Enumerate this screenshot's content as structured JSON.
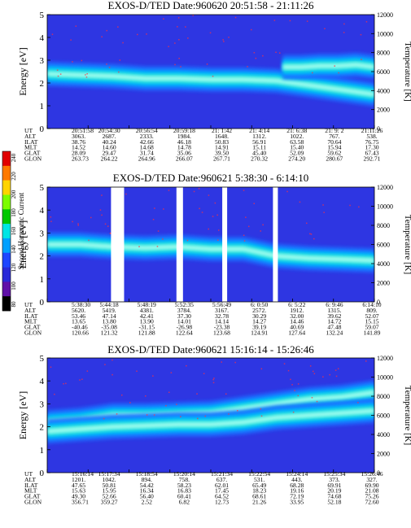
{
  "colorbar": {
    "label": "Second Harmonic Current",
    "ticks": [
      "240",
      "220",
      "200",
      "180",
      "160",
      "140",
      "120",
      "100",
      "80"
    ],
    "colors": [
      "#e10000",
      "#ff7a00",
      "#ffd400",
      "#7cfc00",
      "#00c800",
      "#00e5e5",
      "#00a0ff",
      "#1e46ff",
      "#2a2ad8",
      "#6010a8",
      "#000000"
    ]
  },
  "panels": [
    {
      "title": "EXOS-D/TED  Date:960620  20:51:58 - 21:11:26",
      "ylabel": "Energy [eV]",
      "y2label": "Temperature [K]",
      "yticks": [
        "0",
        "1",
        "2",
        "3",
        "4",
        "5"
      ],
      "y2ticks": [
        "0",
        "2000",
        "4000",
        "6000",
        "8000",
        "10000",
        "12000"
      ],
      "rows": [
        {
          "label": "UT",
          "values": [
            "20:51:58",
            "20:54:30",
            "20:56:54",
            "20:59:18",
            "21: 1:42",
            "21: 4:14",
            "21: 6:38",
            "21: 9: 2",
            "21:11:26"
          ]
        },
        {
          "label": "ALT",
          "values": [
            "3063.",
            "2687.",
            "2333.",
            "1984.",
            "1648.",
            "1312.",
            "1022.",
            "767.",
            "538."
          ]
        },
        {
          "label": "ILAT",
          "values": [
            "38.76",
            "40.24",
            "42.66",
            "46.18",
            "50.83",
            "56.91",
            "63.58",
            "70.64",
            "76.75"
          ]
        },
        {
          "label": "MLT",
          "values": [
            "14.52",
            "14.60",
            "14.68",
            "14.78",
            "14.91",
            "15.11",
            "15.40",
            "15.94",
            "17.30"
          ]
        },
        {
          "label": "GLAT",
          "values": [
            "28.09",
            "29.47",
            "31.74",
            "35.06",
            "39.50",
            "45.40",
            "52.09",
            "59.62",
            "67.43"
          ]
        },
        {
          "label": "GLON",
          "values": [
            "263.73",
            "264.22",
            "264.96",
            "266.07",
            "267.71",
            "270.32",
            "274.20",
            "280.67",
            "292.71"
          ]
        }
      ]
    },
    {
      "title": "EXOS-D/TED   Date:960621   5:38:30 - 6:14:10",
      "ylabel": "Energy [eV]",
      "y2label": "Temperature [K]",
      "yticks": [
        "0",
        "1",
        "2",
        "3",
        "4",
        "5"
      ],
      "y2ticks": [
        "0",
        "2000",
        "4000",
        "6000",
        "8000",
        "10000",
        "12000"
      ],
      "rows": [
        {
          "label": "UT",
          "values": [
            "5:38:30",
            "5:44:18",
            "5:48:19",
            "5:52:35",
            "5:56:49",
            "6: 0:50",
            "6: 5:22",
            "6: 9:46",
            "6:14:10"
          ]
        },
        {
          "label": "ALT",
          "values": [
            "5620.",
            "5419.",
            "4381.",
            "3784.",
            "3167.",
            "2572.",
            "1912.",
            "1315.",
            "809."
          ]
        },
        {
          "label": "ILAT",
          "values": [
            "53.46",
            "47.14",
            "42.41",
            "37.30",
            "32.78",
            "30.29",
            "32.00",
            "39.62",
            "52.07"
          ]
        },
        {
          "label": "MLT",
          "values": [
            "13.65",
            "13.80",
            "13.90",
            "14.01",
            "14.14",
            "14.27",
            "14.46",
            "14.72",
            "15.15"
          ]
        },
        {
          "label": "GLAT",
          "values": [
            "-40.46",
            "-35.08",
            "-31.15",
            "-26.98",
            "-23.38",
            "39.19",
            "40.69",
            "47.48",
            "59.07"
          ]
        },
        {
          "label": "GLON",
          "values": [
            "120.66",
            "121.32",
            "121.88",
            "122.64",
            "123.68",
            "124.91",
            "127.64",
            "132.24",
            "141.89"
          ]
        }
      ]
    },
    {
      "title": "EXOS-D/TED   Date:960621   15:16:14 - 15:26:46",
      "ylabel": "Energy [eV]",
      "y2label": "Temperature [K]",
      "yticks": [
        "0",
        "1",
        "2",
        "3",
        "4",
        "5"
      ],
      "y2ticks": [
        "0",
        "2000",
        "4000",
        "6000",
        "8000",
        "10000",
        "12000"
      ],
      "rows": [
        {
          "label": "UT",
          "values": [
            "15:16:14",
            "15:17:34",
            "15:18:54",
            "15:20:14",
            "15:21:34",
            "15:22:54",
            "15:24:14",
            "15:25:34",
            "15:26:46"
          ]
        },
        {
          "label": "ALT",
          "values": [
            "1201.",
            "1042.",
            "894.",
            "758.",
            "637.",
            "531.",
            "443.",
            "373.",
            "327."
          ]
        },
        {
          "label": "ILAT",
          "values": [
            "47.65",
            "50.81",
            "54.42",
            "58.23",
            "62.01",
            "65.49",
            "68.28",
            "69.91",
            "69.90"
          ]
        },
        {
          "label": "MLT",
          "values": [
            "15.63",
            "15.95",
            "16.34",
            "16.83",
            "17.45",
            "18.23",
            "19.16",
            "20.19",
            "21.08"
          ]
        },
        {
          "label": "GLAT",
          "values": [
            "49.30",
            "52.66",
            "56.40",
            "60.41",
            "64.52",
            "68.61",
            "72.19",
            "74.68",
            "75.26"
          ]
        },
        {
          "label": "GLON",
          "values": [
            "356.71",
            "359.27",
            "2.52",
            "6.82",
            "12.73",
            "21.26",
            "33.95",
            "52.18",
            "72.60"
          ]
        }
      ]
    }
  ],
  "chart_data": [
    {
      "type": "heatmap",
      "title": "EXOS-D/TED  Date:960620  20:51:58 - 21:11:26",
      "ylabel": "Energy [eV]",
      "y2label": "Temperature [K]",
      "ylim": [
        0,
        5
      ],
      "y2lim": [
        0,
        12000
      ],
      "x_ticks": [
        "20:51:58",
        "20:54:30",
        "20:56:54",
        "20:59:18",
        "21: 1:42",
        "21: 4:14",
        "21: 6:38",
        "21: 9: 2",
        "21:11:26"
      ],
      "bands": [
        {
          "from": 0.0,
          "to": 1.0,
          "y": [
            2.4,
            2.35,
            2.3,
            2.2,
            2.2,
            2.15,
            2.15,
            2.1,
            1.9,
            1.7,
            1.5
          ]
        },
        {
          "from": 0.72,
          "to": 1.0,
          "y": [
            2.7,
            2.7,
            2.75,
            2.75,
            2.8,
            2.7
          ]
        }
      ],
      "colorbar_label": "Second Harmonic Current",
      "colorbar_range": [
        80,
        240
      ]
    },
    {
      "type": "heatmap",
      "title": "EXOS-D/TED   Date:960621   5:38:30 - 6:14:10",
      "ylabel": "Energy [eV]",
      "y2label": "Temperature [K]",
      "ylim": [
        0,
        5
      ],
      "y2lim": [
        0,
        12000
      ],
      "x_ticks": [
        "5:38:30",
        "5:44:18",
        "5:48:19",
        "5:52:35",
        "5:56:49",
        "6: 0:50",
        "6: 5:22",
        "6: 9:46",
        "6:14:10"
      ],
      "bands": [
        {
          "from": 0.0,
          "to": 1.0,
          "y": [
            2.5,
            2.5,
            2.4,
            2.35,
            2.4,
            2.3,
            2.3,
            2.0,
            1.9,
            1.85,
            1.8
          ]
        }
      ],
      "data_gaps": [
        [
          0.195,
          0.235
        ],
        [
          0.395,
          0.415
        ],
        [
          0.535,
          0.55
        ],
        [
          0.69,
          0.705
        ]
      ],
      "colorbar_label": "Second Harmonic Current",
      "colorbar_range": [
        80,
        240
      ]
    },
    {
      "type": "heatmap",
      "title": "EXOS-D/TED   Date:960621   15:16:14 - 15:26:46",
      "ylabel": "Energy [eV]",
      "y2label": "Temperature [K]",
      "ylim": [
        0,
        5
      ],
      "y2lim": [
        0,
        12000
      ],
      "x_ticks": [
        "15:16:14",
        "15:17:34",
        "15:18:54",
        "15:20:14",
        "15:21:34",
        "15:22:54",
        "15:24:14",
        "15:25:34",
        "15:26:46"
      ],
      "bands": [
        {
          "from": 0.0,
          "to": 1.0,
          "y": [
            2.2,
            2.3,
            2.5,
            2.5,
            2.55,
            2.6,
            2.8,
            3.0,
            3.2,
            3.3,
            3.5
          ]
        },
        {
          "from": 0.0,
          "to": 1.0,
          "y": [
            1.8,
            1.9,
            2.0,
            2.05,
            2.1,
            2.1,
            2.2,
            2.4,
            2.5,
            2.6,
            2.7
          ]
        }
      ],
      "colorbar_label": "Second Harmonic Current",
      "colorbar_range": [
        80,
        240
      ]
    }
  ]
}
